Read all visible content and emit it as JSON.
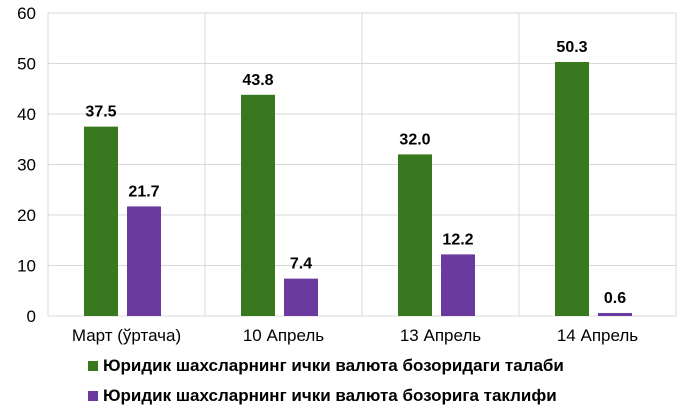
{
  "chart_data": {
    "type": "bar",
    "categories": [
      "Март (ўртача)",
      "10 Апрель",
      "13 Апрель",
      "14 Апрель"
    ],
    "series": [
      {
        "name": "Юридик шахсларнинг ички валюта бозоридаги талаби",
        "values": [
          37.5,
          43.8,
          32.0,
          50.3
        ],
        "labels": [
          "37.5",
          "43.8",
          "32.0",
          "50.3"
        ],
        "color": "#38781f"
      },
      {
        "name": "Юридик шахсларнинг ички валюта бозорига таклифи",
        "values": [
          21.7,
          7.4,
          12.2,
          0.6
        ],
        "labels": [
          "21.7",
          "7.4",
          "12.2",
          "0.6"
        ],
        "color": "#6b3a9e"
      }
    ],
    "ylim": [
      0,
      60
    ],
    "yticks": [
      "0",
      "10",
      "20",
      "30",
      "40",
      "50",
      "60"
    ],
    "grid": true,
    "legend_position": "bottom",
    "title": "",
    "xlabel": "",
    "ylabel": ""
  }
}
